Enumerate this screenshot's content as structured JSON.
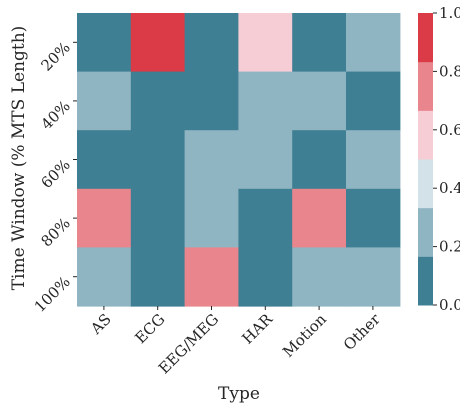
{
  "chart_data": {
    "type": "heatmap",
    "xlabel": "Type",
    "ylabel": "Time Window (% MTS Length)",
    "x_categories": [
      "AS",
      "ECG",
      "EEG/MEG",
      "HAR",
      "Motion",
      "Other"
    ],
    "y_categories": [
      "20%",
      "40%",
      "60%",
      "80%",
      "100%"
    ],
    "values": [
      [
        0.1,
        0.9,
        0.1,
        0.5,
        0.1,
        0.3
      ],
      [
        0.3,
        0.1,
        0.1,
        0.3,
        0.3,
        0.1
      ],
      [
        0.1,
        0.1,
        0.3,
        0.3,
        0.1,
        0.3
      ],
      [
        0.7,
        0.1,
        0.3,
        0.1,
        0.7,
        0.1
      ],
      [
        0.3,
        0.1,
        0.8,
        0.1,
        0.3,
        0.3
      ]
    ],
    "colorbar": {
      "range": [
        0.0,
        1.0
      ],
      "ticks": [
        "0.0",
        "0.2",
        "0.4",
        "0.6",
        "0.8",
        "1.0"
      ],
      "band_colors": [
        "#3f7f93",
        "#8fb4c2",
        "#d3e2e8",
        "#f6cdd4",
        "#e9858c",
        "#da3b46"
      ]
    }
  }
}
